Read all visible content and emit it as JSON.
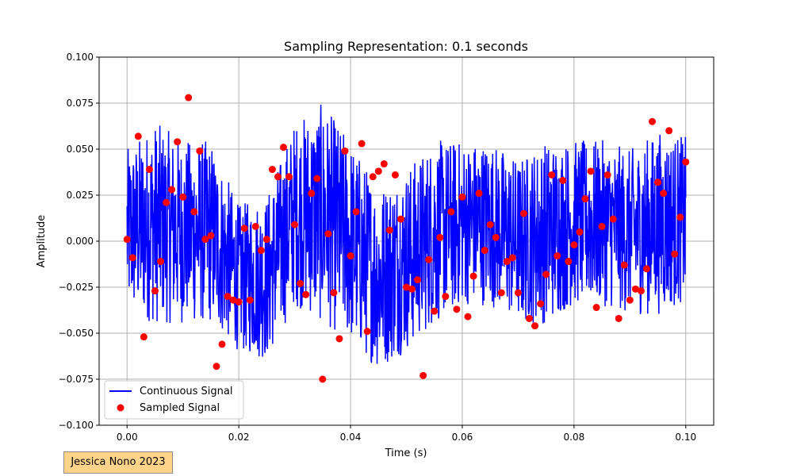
{
  "chart_data": {
    "type": "line",
    "title": "Sampling Representation: 0.1 seconds",
    "xlabel": "Time (s)",
    "ylabel": "Amplitude",
    "xlim": [
      -0.005,
      0.105
    ],
    "ylim": [
      -0.1,
      0.1
    ],
    "x_ticks": [
      0.0,
      0.02,
      0.04,
      0.06,
      0.08,
      0.1
    ],
    "x_tick_labels": [
      "0.00",
      "0.02",
      "0.04",
      "0.06",
      "0.08",
      "0.10"
    ],
    "y_ticks": [
      -0.1,
      -0.075,
      -0.05,
      -0.025,
      0.0,
      0.025,
      0.05,
      0.075,
      0.1
    ],
    "y_tick_labels": [
      "−0.100",
      "−0.075",
      "−0.050",
      "−0.025",
      "0.000",
      "0.025",
      "0.050",
      "0.075",
      "0.100"
    ],
    "grid": true,
    "legend_position": "lower-left",
    "series": [
      {
        "name": "Continuous Signal",
        "kind": "line",
        "color": "#0000ff",
        "x_range": [
          0.0,
          0.1
        ],
        "envelope_center": [
          0.005,
          0.01,
          0.005,
          0.005,
          -0.02,
          -0.02,
          0.015,
          0.015,
          0.0,
          -0.02,
          -0.01,
          0.005,
          0.01,
          0.01,
          0.0,
          0.005,
          0.01,
          0.01,
          0.005,
          0.01,
          0.012
        ],
        "envelope_halfwidth": [
          0.045,
          0.055,
          0.05,
          0.05,
          0.04,
          0.045,
          0.05,
          0.06,
          0.055,
          0.05,
          0.05,
          0.05,
          0.045,
          0.045,
          0.045,
          0.05,
          0.045,
          0.045,
          0.045,
          0.05,
          0.045
        ]
      },
      {
        "name": "Sampled Signal",
        "kind": "scatter",
        "color": "#ff0000",
        "x": [
          0.0,
          0.001,
          0.002,
          0.003,
          0.004,
          0.005,
          0.006,
          0.007,
          0.008,
          0.009,
          0.01,
          0.011,
          0.012,
          0.013,
          0.014,
          0.015,
          0.016,
          0.017,
          0.018,
          0.019,
          0.02,
          0.021,
          0.022,
          0.023,
          0.024,
          0.025,
          0.026,
          0.027,
          0.028,
          0.029,
          0.03,
          0.031,
          0.032,
          0.033,
          0.034,
          0.035,
          0.036,
          0.037,
          0.038,
          0.039,
          0.04,
          0.041,
          0.042,
          0.043,
          0.044,
          0.045,
          0.046,
          0.047,
          0.048,
          0.049,
          0.05,
          0.051,
          0.052,
          0.053,
          0.054,
          0.055,
          0.056,
          0.057,
          0.058,
          0.059,
          0.06,
          0.061,
          0.062,
          0.063,
          0.064,
          0.065,
          0.066,
          0.067,
          0.068,
          0.069,
          0.07,
          0.071,
          0.072,
          0.073,
          0.074,
          0.075,
          0.076,
          0.077,
          0.078,
          0.079,
          0.08,
          0.081,
          0.082,
          0.083,
          0.084,
          0.085,
          0.086,
          0.087,
          0.088,
          0.089,
          0.09,
          0.091,
          0.092,
          0.093,
          0.094,
          0.095,
          0.096,
          0.097,
          0.098,
          0.099,
          0.1
        ],
        "y": [
          0.001,
          -0.009,
          0.057,
          -0.052,
          0.039,
          -0.027,
          -0.011,
          0.021,
          0.028,
          0.054,
          0.024,
          0.078,
          0.016,
          0.049,
          0.001,
          0.003,
          -0.068,
          -0.056,
          -0.03,
          -0.032,
          -0.033,
          0.007,
          -0.032,
          0.008,
          -0.005,
          0.001,
          0.039,
          0.035,
          0.051,
          0.035,
          0.009,
          -0.023,
          -0.029,
          0.026,
          0.034,
          -0.075,
          0.004,
          -0.028,
          -0.053,
          0.049,
          -0.008,
          0.016,
          0.053,
          -0.049,
          0.035,
          0.038,
          0.042,
          0.006,
          0.036,
          0.012,
          -0.025,
          -0.026,
          -0.021,
          -0.073,
          -0.01,
          -0.038,
          0.002,
          -0.03,
          0.016,
          -0.037,
          0.024,
          -0.041,
          -0.019,
          0.026,
          -0.005,
          0.009,
          0.002,
          -0.028,
          -0.011,
          -0.009,
          -0.028,
          0.015,
          -0.042,
          -0.046,
          -0.034,
          -0.018,
          0.036,
          -0.008,
          0.033,
          -0.011,
          -0.002,
          0.005,
          0.023,
          0.038,
          -0.036,
          0.008,
          0.036,
          0.012,
          -0.042,
          -0.013,
          -0.032,
          -0.026,
          -0.027,
          -0.015,
          0.065,
          0.032,
          0.026,
          0.06,
          -0.007,
          0.013,
          0.043
        ]
      }
    ]
  },
  "watermark": {
    "text": "Jessica Nono 2023"
  }
}
